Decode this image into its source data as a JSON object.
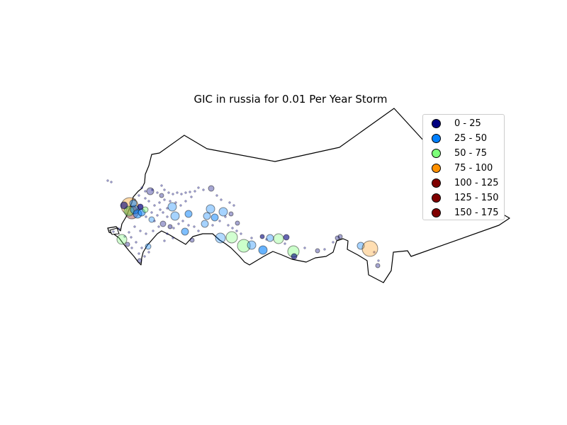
{
  "title": "GIC in russia for 0.01 Per Year Storm",
  "legend": {
    "items": [
      {
        "label": "0 - 25",
        "color": "#00007f"
      },
      {
        "label": "25 - 50",
        "color": "#0080ff"
      },
      {
        "label": "50 - 75",
        "color": "#7dff7a"
      },
      {
        "label": "75 - 100",
        "color": "#ff9100"
      },
      {
        "label": "100 - 125",
        "color": "#7f0000"
      },
      {
        "label": "125 - 150",
        "color": "#7f0000"
      },
      {
        "label": "150 - 175",
        "color": "#7f0000"
      }
    ]
  }
}
